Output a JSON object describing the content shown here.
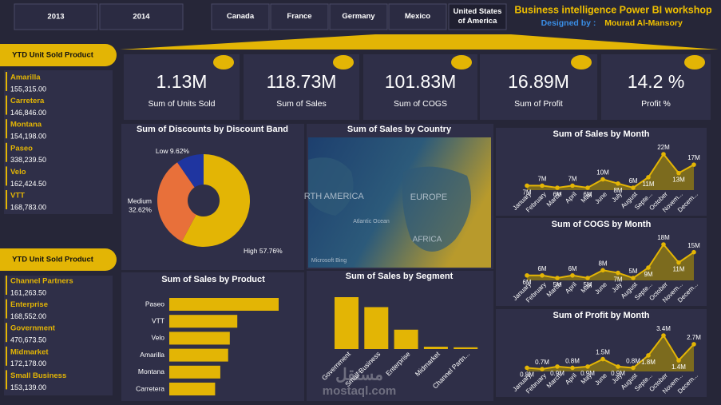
{
  "header": {
    "title": "Business intelligence Power BI workshop",
    "designed_by": "Designed by :",
    "author": "Mourad Al-Mansory"
  },
  "filters": {
    "years": [
      "2013",
      "2014"
    ],
    "countries": [
      "Canada",
      "France",
      "Germany",
      "Mexico",
      "United States of America"
    ]
  },
  "kpis": [
    {
      "value": "1.13M",
      "label": "Sum of Units Sold"
    },
    {
      "value": "118.73M",
      "label": "Sum of  Sales"
    },
    {
      "value": "101.83M",
      "label": "Sum of COGS"
    },
    {
      "value": "16.89M",
      "label": "Sum of Profit"
    },
    {
      "value": "14.2 %",
      "label": "Profit %"
    }
  ],
  "ytd_product": {
    "title": "YTD Unit Sold Product",
    "rows": [
      [
        "Amarilla",
        "155,315.00"
      ],
      [
        "Carretera",
        "146,846.00"
      ],
      [
        "Montana",
        "154,198.00"
      ],
      [
        "Paseo",
        "338,239.50"
      ],
      [
        "Velo",
        "162,424.50"
      ],
      [
        "VTT",
        "168,783.00"
      ]
    ]
  },
  "ytd_segment": {
    "title": "YTD Unit Sold Product",
    "rows": [
      [
        "Channel Partners",
        "161,263.50"
      ],
      [
        "Enterprise",
        "168,552.00"
      ],
      [
        "Government",
        "470,673.50"
      ],
      [
        "Midmarket",
        "172,178.00"
      ],
      [
        "Small Business",
        "153,139.00"
      ]
    ]
  },
  "map": {
    "title": "Sum of Sales by Country",
    "labels": [
      "NORTH AMERICA",
      "EUROPE",
      "AFRICA",
      "Atlantic Ocean",
      "Microsoft Bing"
    ]
  },
  "watermark": {
    "arabic": "مستقل",
    "site": "mostaql.com"
  },
  "chart_data": [
    {
      "type": "pie",
      "title": "Sum of Discounts by Discount Band",
      "categories": [
        "High",
        "Medium",
        "Low"
      ],
      "values": [
        57.76,
        32.62,
        9.62
      ],
      "value_labels": [
        "57.76%",
        "32.62%",
        "9.62%"
      ],
      "colors": [
        "#e3b505",
        "#e8703a",
        "#1f35a0"
      ]
    },
    {
      "type": "bar",
      "orientation": "horizontal",
      "title": "Sum of Sales by Product",
      "categories": [
        "Paseo",
        "VTT",
        "Velo",
        "Amarilla",
        "Montana",
        "Carretera"
      ],
      "values": [
        32.98,
        20.51,
        18.25,
        17.75,
        15.39,
        13.82
      ],
      "color": "#e3b505"
    },
    {
      "type": "bar",
      "orientation": "vertical",
      "title": "Sum of Sales by Segment",
      "categories": [
        "Government",
        "Small Business",
        "Enterprise",
        "Midmarket",
        "Channel Partn..."
      ],
      "values": [
        52.5,
        42.43,
        19.61,
        2.38,
        1.8
      ],
      "color": "#e3b505"
    },
    {
      "type": "line",
      "title": "Sum of Sales by Month",
      "categories": [
        "January",
        "February",
        "March",
        "April",
        "May",
        "June",
        "July",
        "August",
        "Septe...",
        "October",
        "Novem...",
        "Decem..."
      ],
      "values": [
        7,
        7,
        6,
        7,
        6,
        10,
        8,
        6,
        11,
        22,
        13,
        17
      ],
      "value_labels": [
        "7M",
        "7M",
        "6M",
        "7M",
        "6M",
        "10M",
        "8M",
        "6M",
        "11M",
        "22M",
        "13M",
        "17M"
      ],
      "color": "#e3b505"
    },
    {
      "type": "line",
      "title": "Sum of COGS by Month",
      "categories": [
        "January",
        "February",
        "March",
        "April",
        "May",
        "June",
        "July",
        "August",
        "Septe...",
        "October",
        "Novem...",
        "Decem..."
      ],
      "values": [
        6,
        6,
        5,
        6,
        5,
        8,
        7,
        5,
        9,
        18,
        11,
        15
      ],
      "value_labels": [
        "6M",
        "6M",
        "5M",
        "6M",
        "5M",
        "8M",
        "7M",
        "5M",
        "9M",
        "18M",
        "11M",
        "15M"
      ],
      "color": "#e3b505"
    },
    {
      "type": "line",
      "title": "Sum of Profit by Month",
      "categories": [
        "January",
        "February",
        "March",
        "April",
        "May",
        "June",
        "July",
        "August",
        "Septe...",
        "October",
        "Novem...",
        "Decem..."
      ],
      "values": [
        0.8,
        0.7,
        0.9,
        0.8,
        0.9,
        1.5,
        0.9,
        0.8,
        1.8,
        3.4,
        1.4,
        2.7
      ],
      "value_labels": [
        "0.8M",
        "0.7M",
        "0.9M",
        "0.8M",
        "0.9M",
        "1.5M",
        "0.9M",
        "0.8M",
        "1.8M",
        "3.4M",
        "1.4M",
        "2.7M"
      ],
      "color": "#e3b505"
    }
  ]
}
